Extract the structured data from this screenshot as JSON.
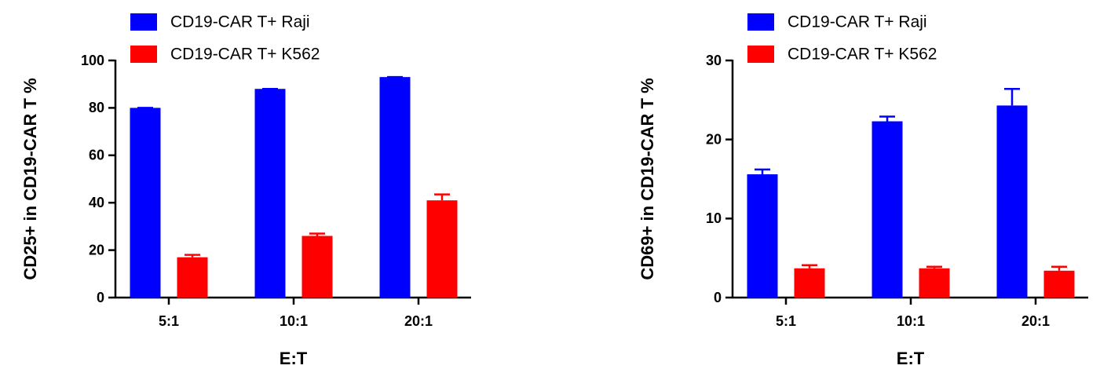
{
  "chart_data": [
    {
      "type": "bar",
      "y_label": "CD25+ in CD19-CAR T %",
      "x_label": "E:T",
      "categories": [
        "5:1",
        "10:1",
        "20:1"
      ],
      "series": [
        {
          "name": "CD19-CAR T+ Raji",
          "color": "#0000ff",
          "values": [
            80,
            88,
            93
          ],
          "errors": [
            0,
            0,
            0
          ]
        },
        {
          "name": "CD19-CAR T+ K562",
          "color": "#ff0000",
          "values": [
            17,
            26,
            41
          ],
          "errors": [
            1,
            1,
            2.5
          ]
        }
      ],
      "ylim": [
        0,
        100
      ],
      "yticks": [
        0,
        20,
        40,
        60,
        80,
        100
      ],
      "grid": false
    },
    {
      "type": "bar",
      "y_label": "CD69+ in CD19-CAR T %",
      "x_label": "E:T",
      "categories": [
        "5:1",
        "10:1",
        "20:1"
      ],
      "series": [
        {
          "name": "CD19-CAR T+ Raji",
          "color": "#0000ff",
          "values": [
            15.6,
            22.3,
            24.3
          ],
          "errors": [
            0.6,
            0.6,
            2.1
          ]
        },
        {
          "name": "CD19-CAR T+ K562",
          "color": "#ff0000",
          "values": [
            3.7,
            3.7,
            3.4
          ],
          "errors": [
            0.4,
            0.2,
            0.5
          ]
        }
      ],
      "ylim": [
        0,
        30
      ],
      "yticks": [
        0,
        10,
        20,
        30
      ],
      "grid": false
    }
  ]
}
